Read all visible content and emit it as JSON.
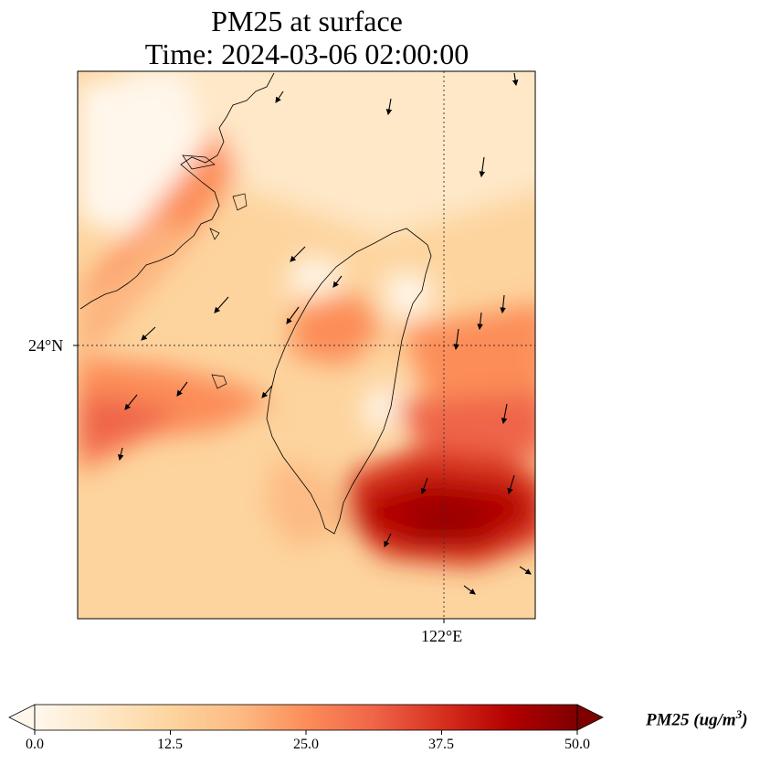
{
  "title": {
    "line1": "PM25 at surface",
    "line2": "Time: 2024-03-06 02:00:00"
  },
  "axes": {
    "lat_label": "24°N",
    "lon_label": "122°E",
    "extent": {
      "lon_min": 118.5,
      "lon_max": 123.0,
      "lat_min": 21.3,
      "lat_max": 26.7
    },
    "gridline_lat": 24.0,
    "gridline_lon": 122.0
  },
  "colorbar": {
    "label": "PM25 (ug/m",
    "label_sup": "3",
    "label_end": ")",
    "ticks": [
      "0.0",
      "12.5",
      "25.0",
      "37.5",
      "50.0"
    ],
    "min": 0,
    "max": 50,
    "colormap": "OrRd",
    "colors": [
      "#fff7ec",
      "#fee8c8",
      "#fdd49e",
      "#fdbb84",
      "#fc8d59",
      "#ef6548",
      "#d7301f",
      "#b30000",
      "#7f0000"
    ]
  }
}
